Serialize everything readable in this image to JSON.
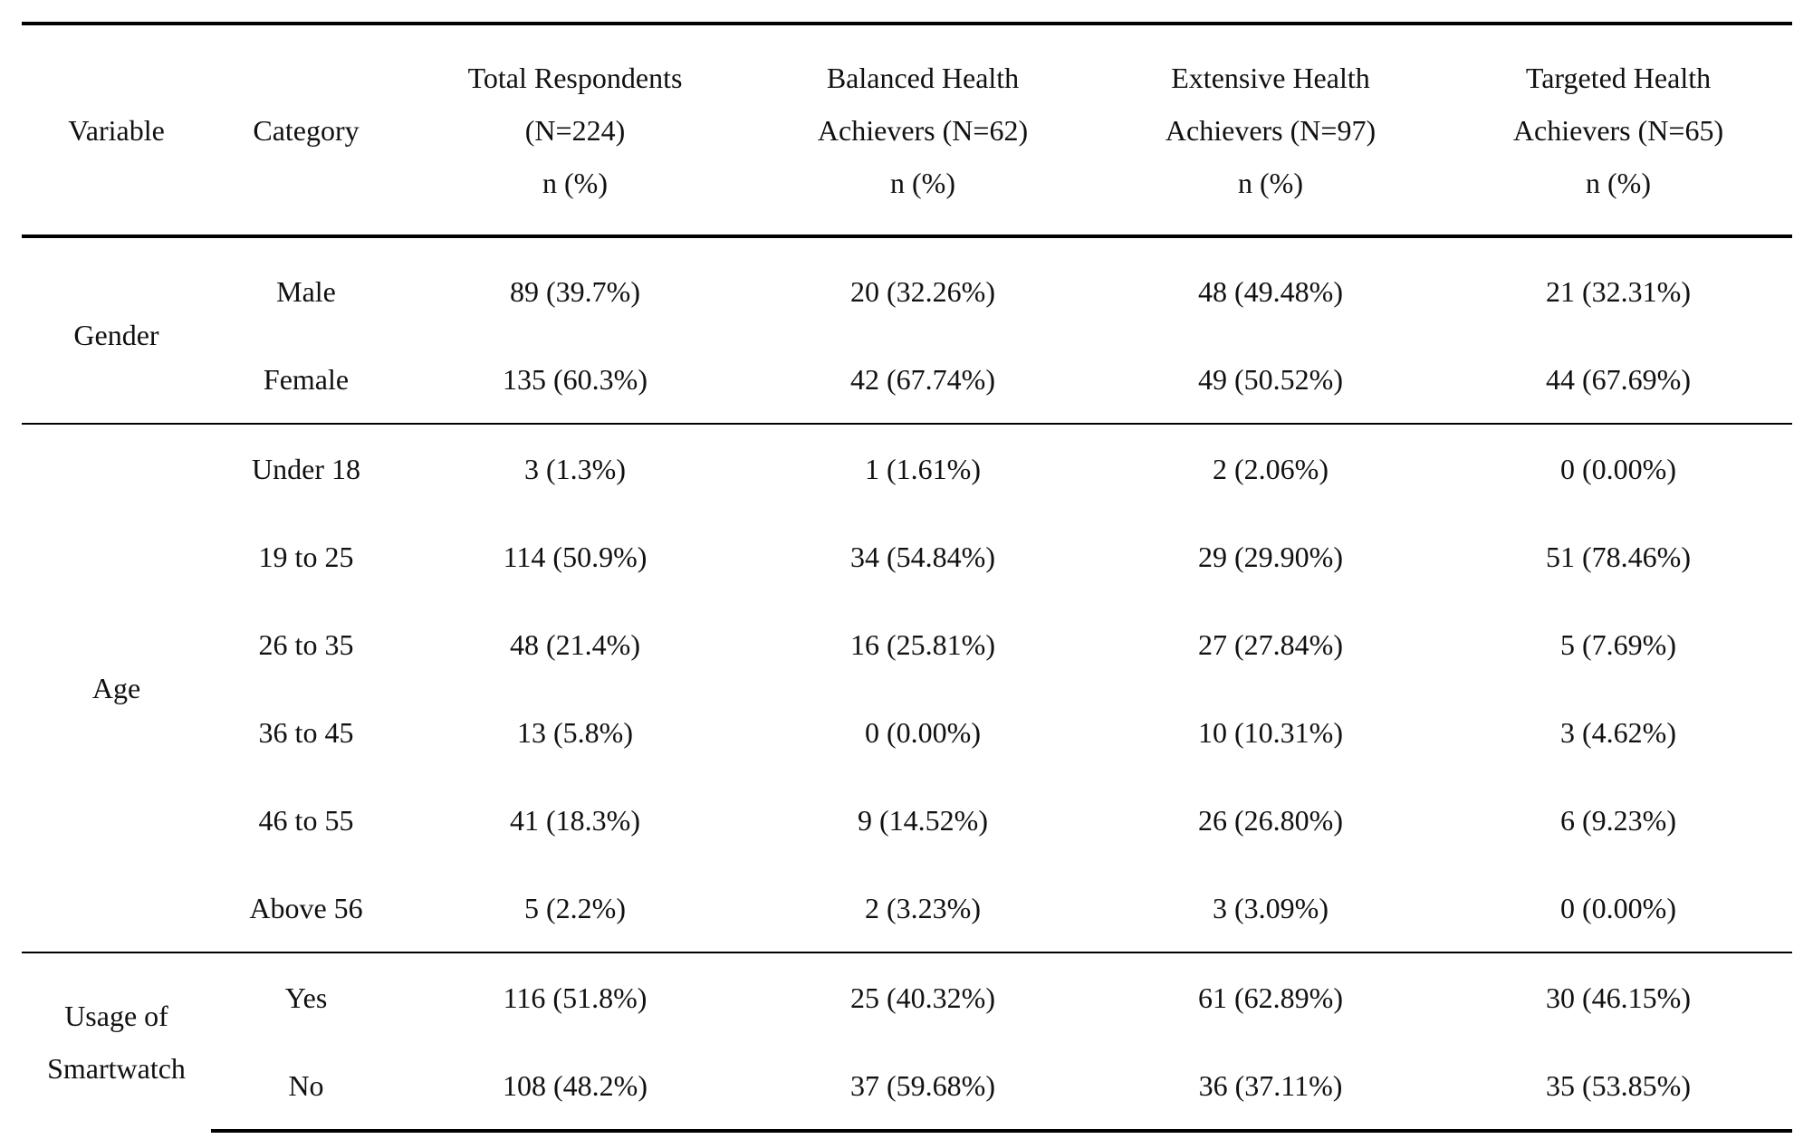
{
  "header": {
    "variable": "Variable",
    "category": "Category",
    "columns": [
      {
        "line1": "Total Respondents",
        "line2": "(N=224)",
        "line3": "n (%)"
      },
      {
        "line1": "Balanced Health",
        "line2": "Achievers (N=62)",
        "line3": "n (%)"
      },
      {
        "line1": "Extensive Health",
        "line2": "Achievers (N=97)",
        "line3": "n (%)"
      },
      {
        "line1": "Targeted Health",
        "line2": "Achievers (N=65)",
        "line3": "n (%)"
      }
    ]
  },
  "groups": [
    {
      "variable": "Gender",
      "rows": [
        {
          "category": "Male",
          "values": [
            "89 (39.7%)",
            "20 (32.26%)",
            "48 (49.48%)",
            "21 (32.31%)"
          ]
        },
        {
          "category": "Female",
          "values": [
            "135 (60.3%)",
            "42 (67.74%)",
            "49 (50.52%)",
            "44 (67.69%)"
          ]
        }
      ]
    },
    {
      "variable": "Age",
      "rows": [
        {
          "category": "Under 18",
          "values": [
            "3 (1.3%)",
            "1 (1.61%)",
            "2 (2.06%)",
            "0 (0.00%)"
          ]
        },
        {
          "category": "19 to 25",
          "values": [
            "114 (50.9%)",
            "34 (54.84%)",
            "29 (29.90%)",
            "51 (78.46%)"
          ]
        },
        {
          "category": "26 to 35",
          "values": [
            "48 (21.4%)",
            "16 (25.81%)",
            "27 (27.84%)",
            "5 (7.69%)"
          ]
        },
        {
          "category": "36 to 45",
          "values": [
            "13 (5.8%)",
            "0 (0.00%)",
            "10 (10.31%)",
            "3 (4.62%)"
          ]
        },
        {
          "category": "46 to 55",
          "values": [
            "41 (18.3%)",
            "9 (14.52%)",
            "26 (26.80%)",
            "6 (9.23%)"
          ]
        },
        {
          "category": "Above 56",
          "values": [
            "5 (2.2%)",
            "2 (3.23%)",
            "3 (3.09%)",
            "0 (0.00%)"
          ]
        }
      ]
    },
    {
      "variable": "Usage of Smartwatch",
      "variable_line1": "Usage of",
      "variable_line2": "Smartwatch",
      "rows": [
        {
          "category": "Yes",
          "values": [
            "116 (51.8%)",
            "25 (40.32%)",
            "61 (62.89%)",
            "30 (46.15%)"
          ]
        },
        {
          "category": "No",
          "values": [
            "108 (48.2%)",
            "37 (59.68%)",
            "36 (37.11%)",
            "35 (53.85%)"
          ]
        }
      ]
    }
  ]
}
